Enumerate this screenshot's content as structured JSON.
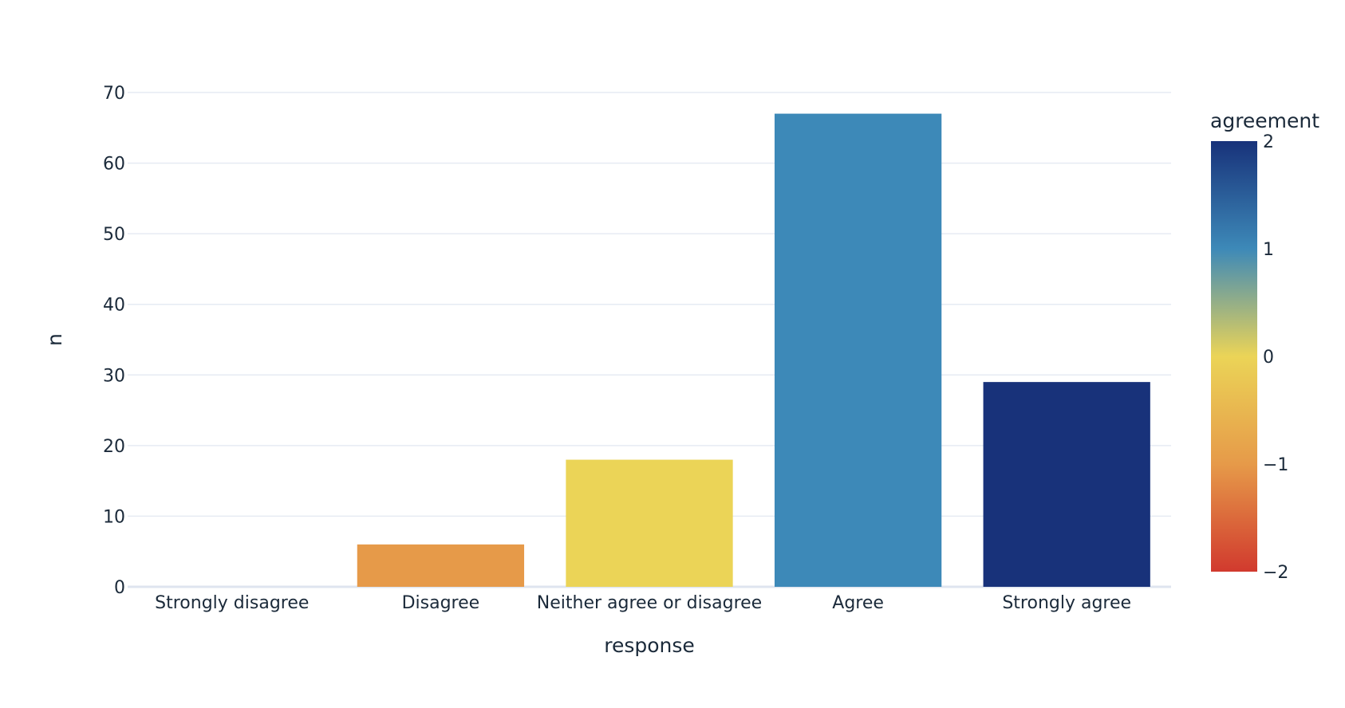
{
  "chart_data": {
    "type": "bar",
    "xlabel": "response",
    "ylabel": "n",
    "categories": [
      "Strongly disagree",
      "Disagree",
      "Neither agree or disagree",
      "Agree",
      "Strongly agree"
    ],
    "values": [
      0,
      6,
      18,
      67,
      29
    ],
    "color_values": [
      -2,
      -1,
      0,
      1,
      2
    ],
    "ylim": [
      0,
      70
    ],
    "yticks": [
      0,
      10,
      20,
      30,
      40,
      50,
      60,
      70
    ],
    "grid": true,
    "colorbar": {
      "title": "agreement",
      "range": [
        -2,
        2
      ],
      "ticks": [
        2,
        1,
        0,
        -1,
        -2
      ],
      "tick_labels": [
        "2",
        "1",
        "0",
        "−1",
        "−2"
      ],
      "scale": [
        "#d13a2e",
        "#e69a49",
        "#ebd457",
        "#3d89b8",
        "#18327a"
      ],
      "placement": "right"
    }
  }
}
